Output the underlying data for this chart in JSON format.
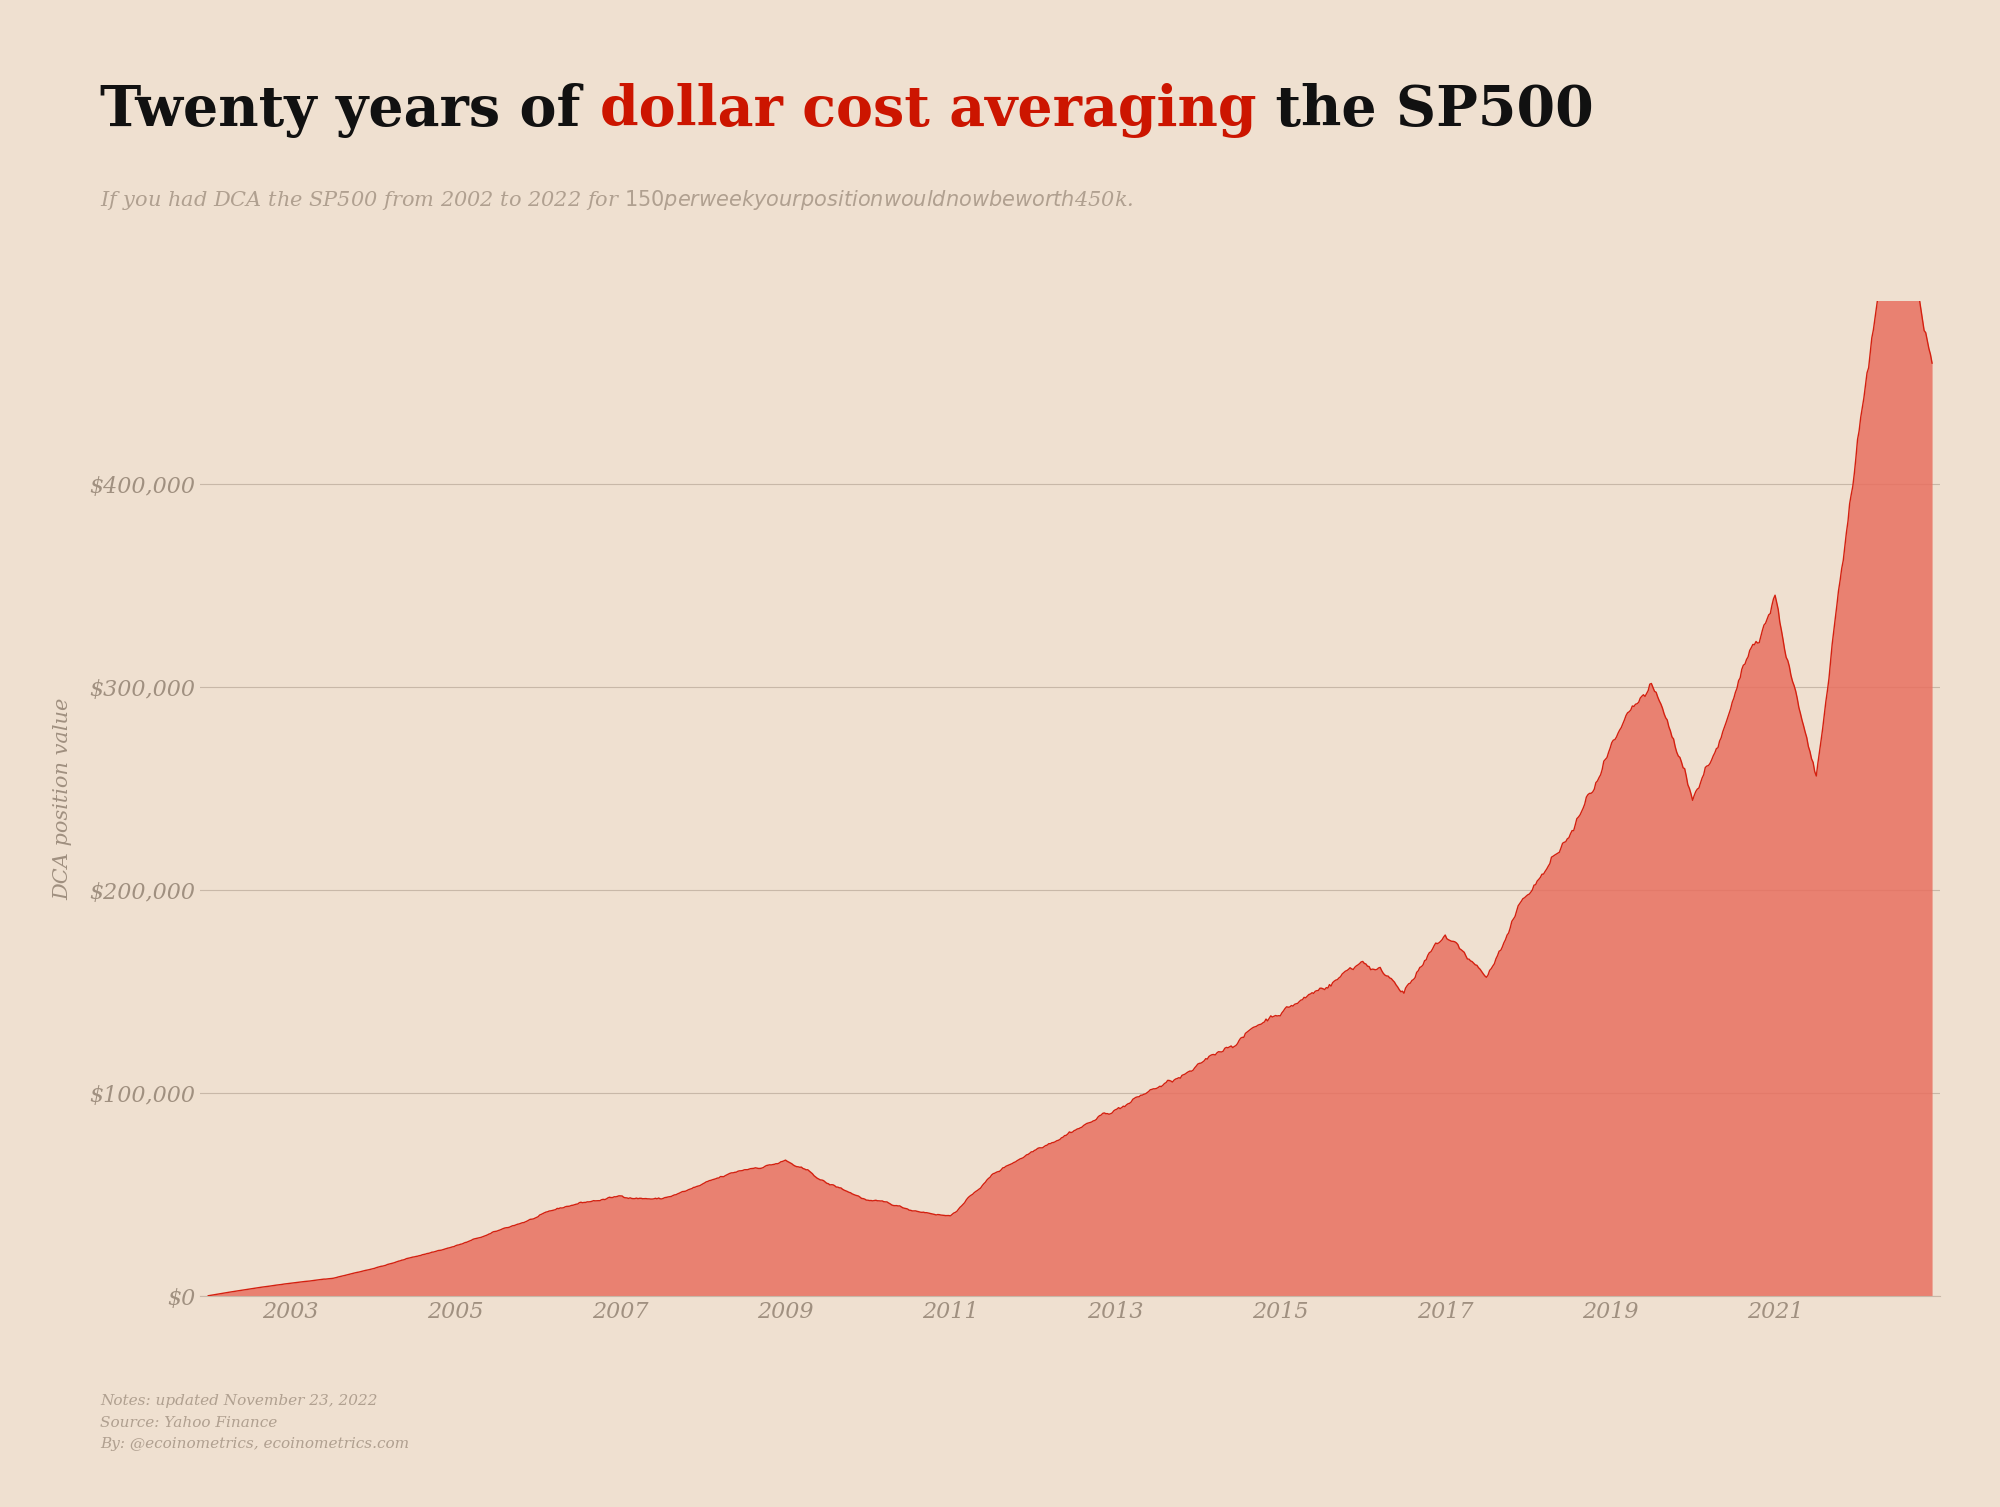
{
  "title_black1": "Twenty years of ",
  "title_red": "dollar cost averaging",
  "title_black2": " the SP500",
  "subtitle": "If you had DCA the SP500 from 2002 to 2022 for $150 per week your position would now be worth $450k.",
  "ylabel": "DCA position value",
  "background_color": "#efe0d0",
  "line_color": "#d42010",
  "fill_color": "#e87060",
  "fill_alpha": 0.85,
  "grid_color": "#c8b8a8",
  "tick_color": "#a09080",
  "title_fontsize": 40,
  "subtitle_fontsize": 15,
  "ylabel_fontsize": 15,
  "notes": "Notes: updated November 23, 2022\nSource: Yahoo Finance\nBy: @ecoinometrics, ecoinometrics.com",
  "notes_fontsize": 11,
  "yticks": [
    0,
    100000,
    200000,
    300000,
    400000
  ],
  "ytick_labels": [
    "$0",
    "$100,000",
    "$200,000",
    "$300,000",
    "$400,000"
  ],
  "xtick_years": [
    2003,
    2005,
    2007,
    2009,
    2011,
    2013,
    2015,
    2017,
    2019,
    2021
  ],
  "ymax": 490000,
  "xlim_left": 2001.9,
  "xlim_right": 2023.0
}
